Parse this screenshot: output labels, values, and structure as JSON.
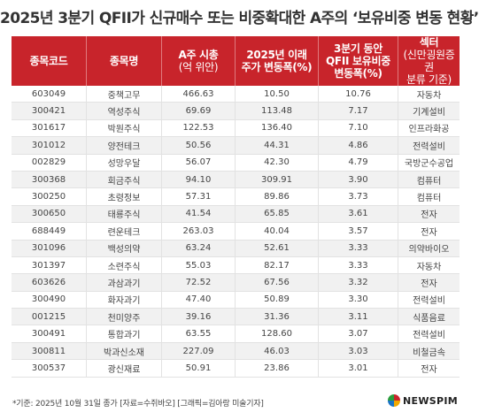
{
  "title": "2025년 3분기 QFII가 신규매수 또는 비중확대한 A주의 ‘보유비중 변동 현황’",
  "chart_data": {
    "type": "table",
    "title": "2025년 3분기 QFII가 신규매수 또는 비중확대한 A주의 ‘보유비중 변동 현황’",
    "columns": [
      {
        "line1": "종목코드",
        "line2": "",
        "line3": ""
      },
      {
        "line1": "종목명",
        "line2": "",
        "line3": ""
      },
      {
        "line1": "A주 시총",
        "line2": "(억 위안)",
        "line3": ""
      },
      {
        "line1": "2025년 이래",
        "line2": "주가 변동폭(%)",
        "line3": ""
      },
      {
        "line1": "3분기 동안",
        "line2": "QFII 보유비중",
        "line3": "변동폭(%)"
      },
      {
        "line1": "섹터",
        "line2": "(신만굉원증권",
        "line3": "분류 기준)"
      }
    ],
    "rows": [
      [
        "603049",
        "중책고무",
        "466.63",
        "10.50",
        "10.76",
        "자동차"
      ],
      [
        "300421",
        "역성주식",
        "69.69",
        "113.48",
        "7.17",
        "기계설비"
      ],
      [
        "301617",
        "박원주식",
        "122.53",
        "136.40",
        "7.10",
        "인프라화공"
      ],
      [
        "301012",
        "양전테크",
        "50.56",
        "44.31",
        "4.86",
        "전력설비"
      ],
      [
        "002829",
        "성망우달",
        "56.07",
        "42.30",
        "4.79",
        "국방군수공업"
      ],
      [
        "300368",
        "회금주식",
        "94.10",
        "309.91",
        "3.90",
        "컴퓨터"
      ],
      [
        "300250",
        "초령정보",
        "57.31",
        "89.86",
        "3.73",
        "컴퓨터"
      ],
      [
        "300650",
        "태룡주식",
        "41.54",
        "65.85",
        "3.61",
        "전자"
      ],
      [
        "688449",
        "련운테크",
        "263.03",
        "40.04",
        "3.57",
        "전자"
      ],
      [
        "301096",
        "백성의약",
        "63.24",
        "52.61",
        "3.33",
        "의약바이오"
      ],
      [
        "301397",
        "소련주식",
        "55.03",
        "82.17",
        "3.33",
        "자동차"
      ],
      [
        "603626",
        "과삼과기",
        "72.52",
        "67.56",
        "3.32",
        "전자"
      ],
      [
        "300490",
        "화자과기",
        "47.40",
        "50.89",
        "3.30",
        "전력설비"
      ],
      [
        "001215",
        "천미양주",
        "39.16",
        "31.36",
        "3.11",
        "식품음료"
      ],
      [
        "300491",
        "통합과기",
        "63.55",
        "128.60",
        "3.07",
        "전력설비"
      ],
      [
        "300811",
        "박과신소재",
        "227.09",
        "46.03",
        "3.03",
        "비철금속"
      ],
      [
        "300537",
        "광신재료",
        "50.91",
        "23.86",
        "3.01",
        "전자"
      ]
    ]
  },
  "footnote": "*기준: 2025년 10월 31일 종가 [자료=수쥐바오] [그래픽=김아랑 미술기자]",
  "logo": {
    "text": "NEWSPIM"
  },
  "colors": {
    "header": "#c8242b",
    "alt_row": "#f1f1f1",
    "text": "#333333"
  }
}
